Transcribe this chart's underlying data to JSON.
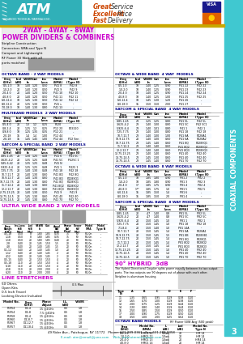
{
  "bg_color": "#ffffff",
  "sidebar_color": "#40c8d0",
  "header_bar_color": "#c8a800",
  "title_color": "#cc00cc",
  "section_title_color": "#000088",
  "ultra_title_color": "#cc00cc",
  "line_stretch_color": "#cc00cc",
  "tagline_bold_color": "#cc4400",
  "tagline_normal_color": "#333333",
  "address": "49 Rider Ave., Patchogue, NY 11772   Phone: 631-289-0361   Fax: 631-289-0358",
  "email": "atm@email@juno.com",
  "web": "www.atmmicrowave.com"
}
